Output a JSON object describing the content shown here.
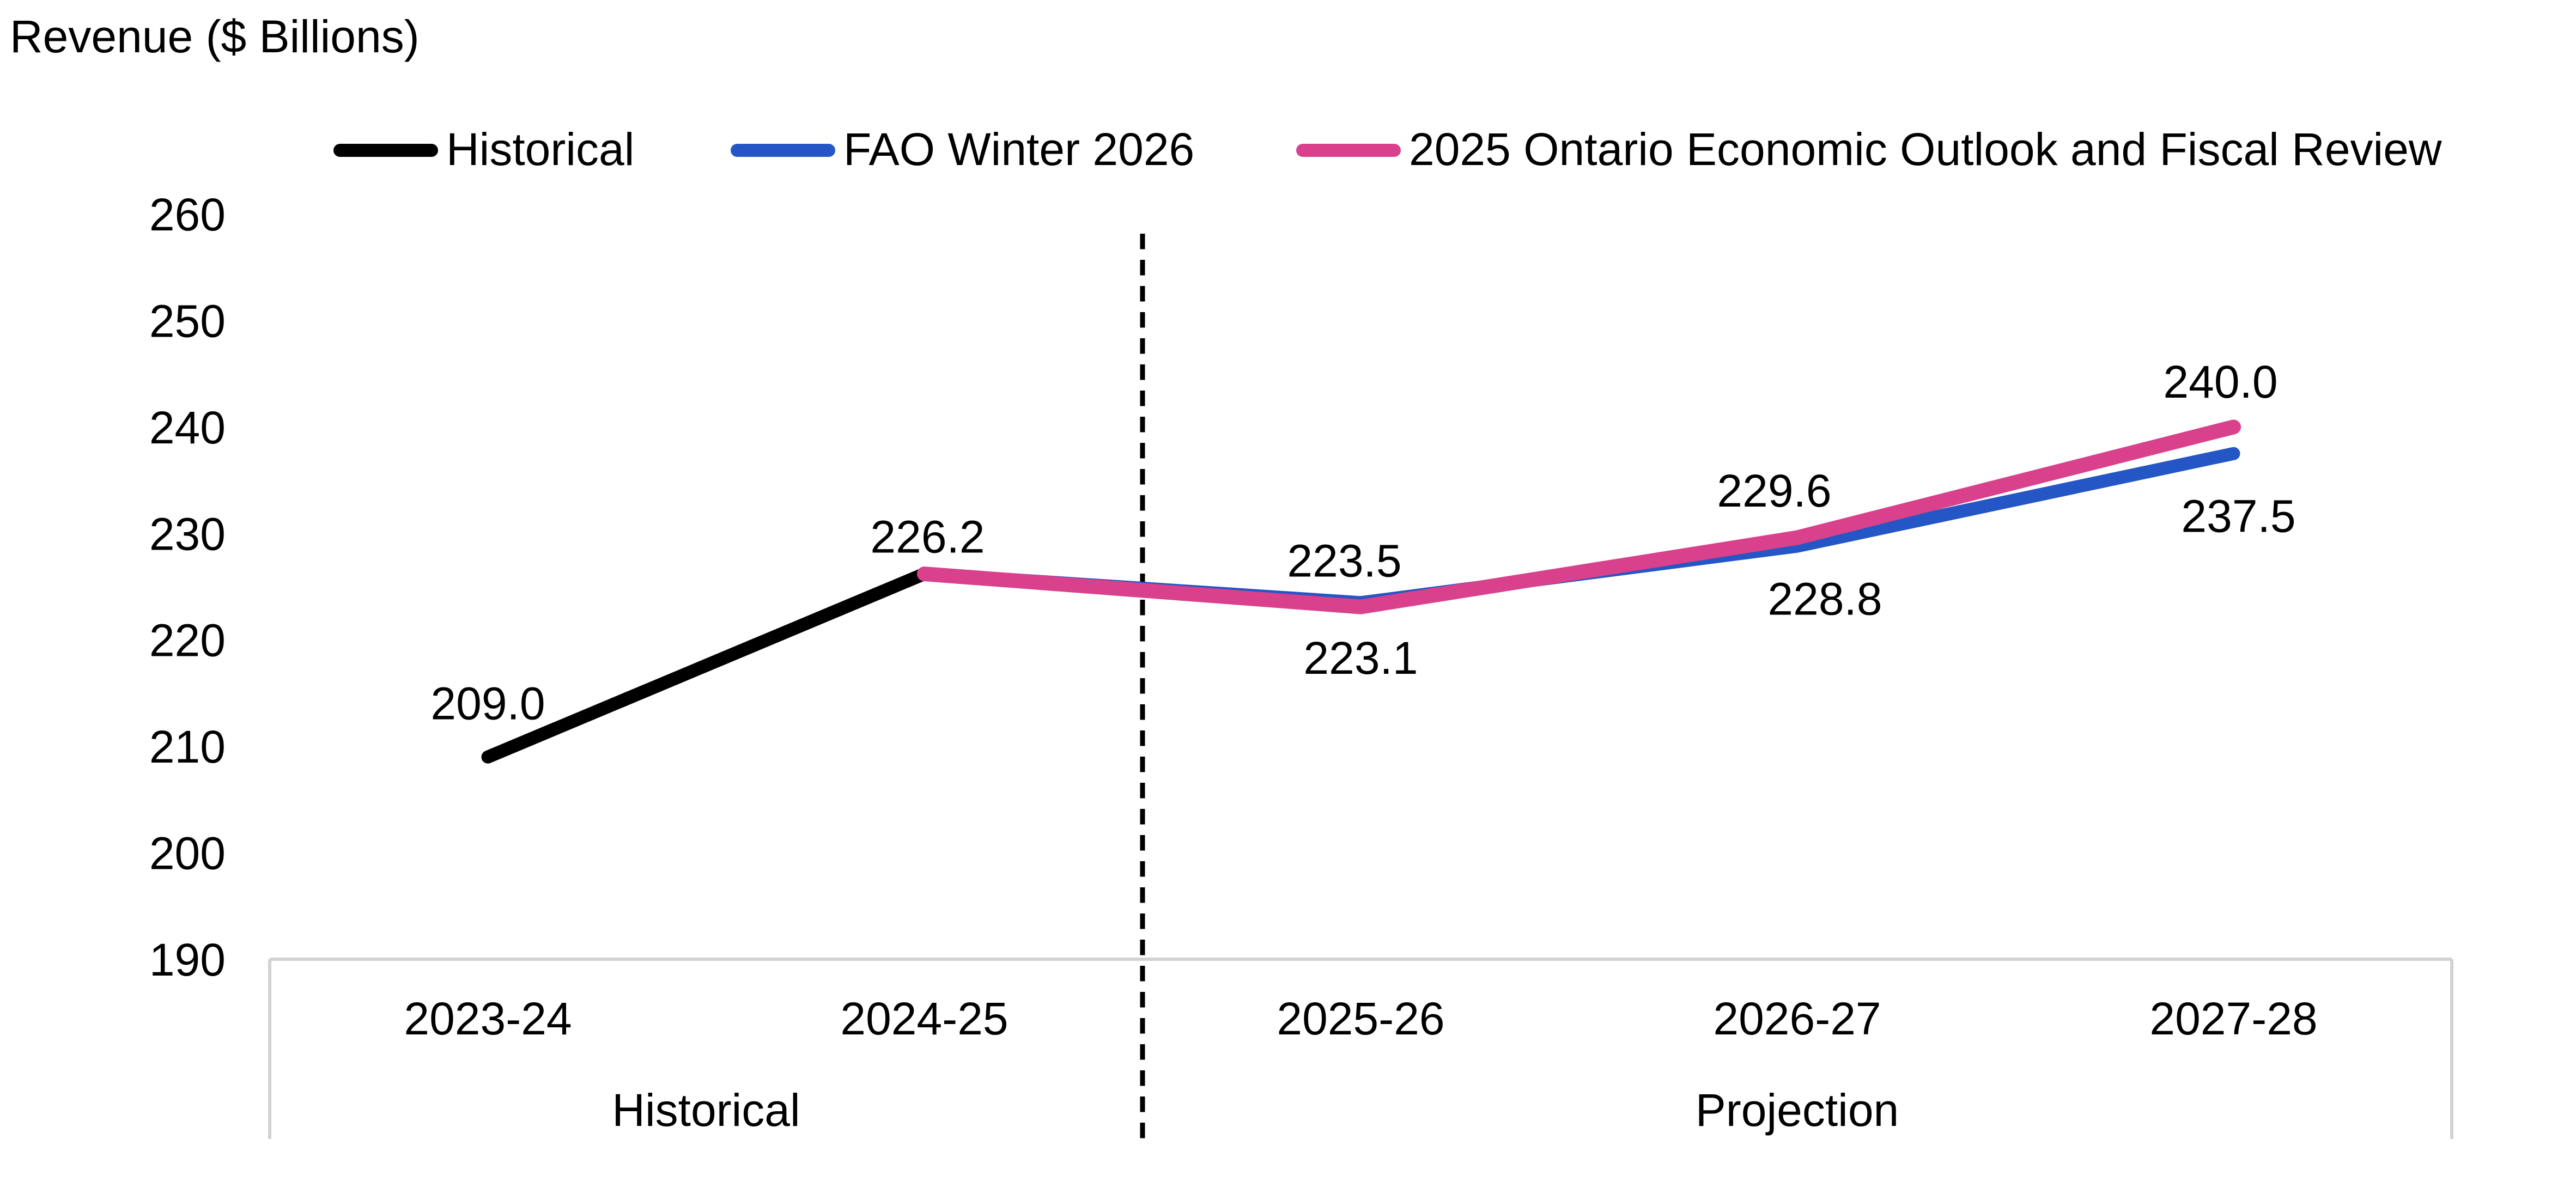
{
  "title": "Revenue ($ Billions)",
  "legend": [
    {
      "label": "Historical",
      "color": "#000000"
    },
    {
      "label": "FAO Winter 2026",
      "color": "#2456C5"
    },
    {
      "label": "2025 Ontario Economic Outlook and Fiscal Review",
      "color": "#D9418C"
    }
  ],
  "chart_data": {
    "type": "line",
    "title": "Revenue ($ Billions)",
    "categories": [
      "2023-24",
      "2024-25",
      "2025-26",
      "2026-27",
      "2027-28"
    ],
    "series": [
      {
        "name": "Historical",
        "color": "#000000",
        "values": [
          209.0,
          226.2,
          null,
          null,
          null
        ]
      },
      {
        "name": "FAO Winter 2026",
        "color": "#2456C5",
        "values": [
          null,
          226.2,
          223.5,
          228.8,
          237.5
        ]
      },
      {
        "name": "2025 Ontario Economic Outlook and Fiscal Review",
        "color": "#D9418C",
        "values": [
          null,
          226.2,
          223.1,
          229.6,
          240.0
        ]
      }
    ],
    "data_labels": [
      {
        "text": "209.0",
        "series": 0,
        "category": 0,
        "side": "above"
      },
      {
        "text": "226.2",
        "series": 0,
        "category": 1,
        "side": "above"
      },
      {
        "text": "223.5",
        "series": 1,
        "category": 2,
        "side": "above"
      },
      {
        "text": "223.1",
        "series": 2,
        "category": 2,
        "side": "below"
      },
      {
        "text": "229.6",
        "series": 2,
        "category": 3,
        "side": "above"
      },
      {
        "text": "228.8",
        "series": 1,
        "category": 3,
        "side": "below"
      },
      {
        "text": "240.0",
        "series": 2,
        "category": 4,
        "side": "above"
      },
      {
        "text": "237.5",
        "series": 1,
        "category": 4,
        "side": "below"
      }
    ],
    "ylim": [
      190,
      260
    ],
    "yticks": [
      260,
      250,
      240,
      230,
      220,
      210,
      200,
      190
    ],
    "x_groups": [
      {
        "label": "Historical",
        "span": [
          0,
          1
        ]
      },
      {
        "label": "Projection",
        "span": [
          2,
          4
        ]
      }
    ],
    "divider_after_category": 1,
    "grid": false,
    "legend_position": "top",
    "axis_frame_color": "#D2D2D2"
  }
}
